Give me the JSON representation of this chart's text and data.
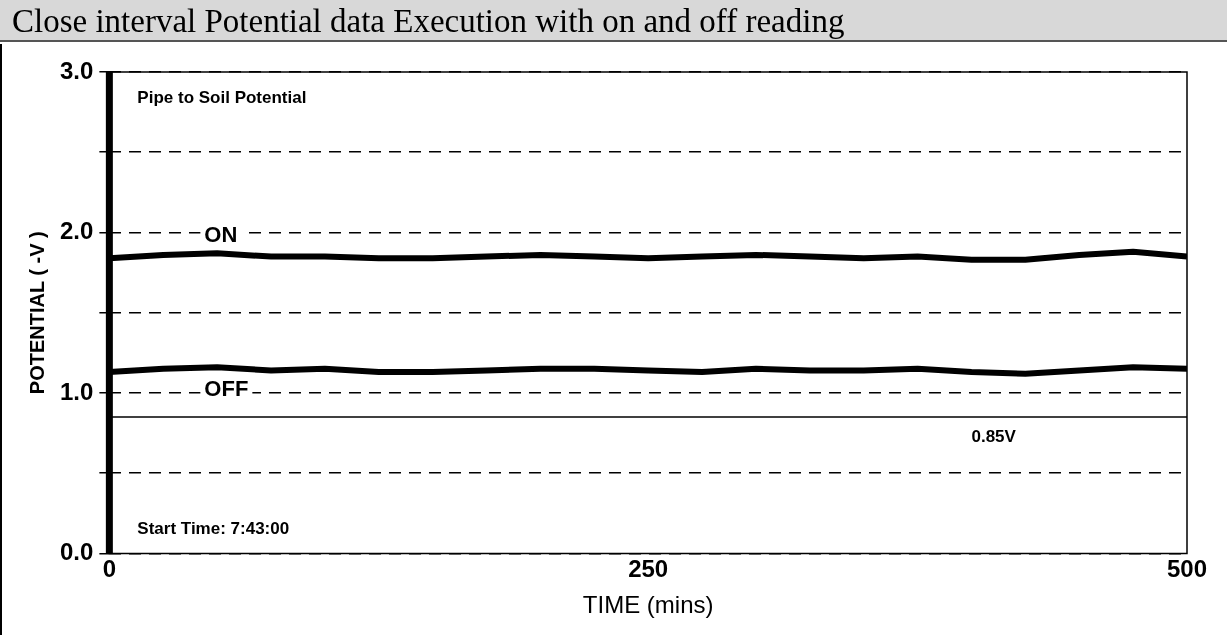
{
  "chart_data": {
    "type": "line",
    "title": "Close interval Potential data Execution with on and off reading",
    "xlabel": "TIME (mins)",
    "ylabel": "POTENTIAL ( -V )",
    "x": [
      0,
      25,
      50,
      75,
      100,
      125,
      150,
      175,
      200,
      225,
      250,
      275,
      300,
      325,
      350,
      375,
      400,
      425,
      450,
      475,
      500
    ],
    "series": [
      {
        "name": "ON",
        "color": "#000000",
        "values": [
          1.84,
          1.86,
          1.87,
          1.85,
          1.85,
          1.84,
          1.84,
          1.85,
          1.86,
          1.85,
          1.84,
          1.85,
          1.86,
          1.85,
          1.84,
          1.85,
          1.83,
          1.83,
          1.86,
          1.88,
          1.85
        ]
      },
      {
        "name": "OFF",
        "color": "#000000",
        "values": [
          1.13,
          1.15,
          1.16,
          1.14,
          1.15,
          1.13,
          1.13,
          1.14,
          1.15,
          1.15,
          1.14,
          1.13,
          1.15,
          1.14,
          1.14,
          1.15,
          1.13,
          1.12,
          1.14,
          1.16,
          1.15
        ]
      }
    ],
    "xlim": [
      0,
      500
    ],
    "xticks": [
      0,
      250,
      500
    ],
    "ylim": [
      0,
      3
    ],
    "yticks": [
      {
        "value": 0,
        "label": "0.0"
      },
      {
        "value": 0.5,
        "label": null
      },
      {
        "value": 1,
        "label": "1.0"
      },
      {
        "value": 1.5,
        "label": null
      },
      {
        "value": 2,
        "label": "2.0"
      },
      {
        "value": 2.5,
        "label": null
      },
      {
        "value": 3,
        "label": "3.0"
      }
    ],
    "ref_lines": [
      {
        "axis": "y",
        "value": 0.85,
        "label": "0.85V",
        "color": "#000000",
        "line_style": "solid"
      }
    ],
    "annotations": [
      "Pipe to Soil Potential",
      "Start Time: 7:43:00"
    ],
    "grid": "y",
    "legend": false,
    "marker": "none",
    "line_style": "solid"
  }
}
